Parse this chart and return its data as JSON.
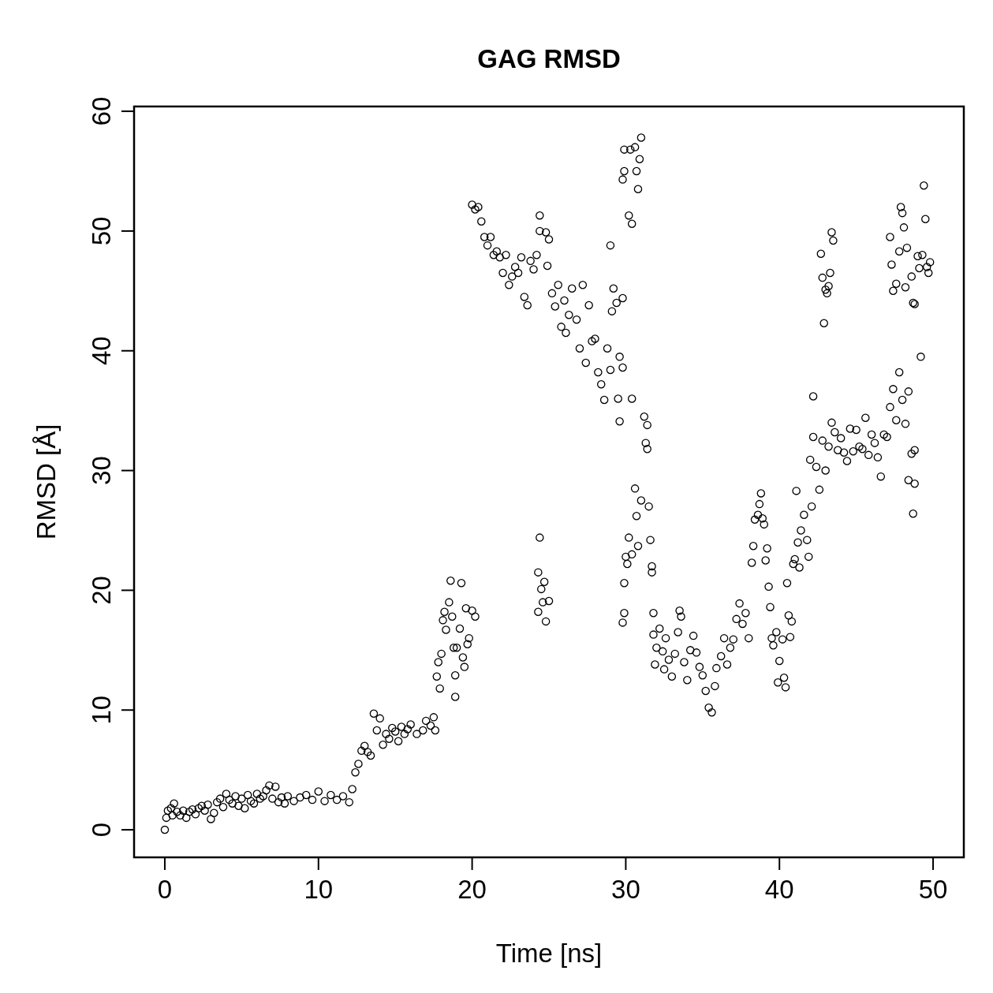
{
  "chart_data": {
    "type": "scatter",
    "title": "GAG RMSD",
    "xlabel": "Time [ns]",
    "ylabel": "RMSD [Å]",
    "xlim": [
      -2,
      52
    ],
    "ylim": [
      -2.3,
      60.4
    ],
    "xticks": [
      0,
      10,
      20,
      30,
      40,
      50
    ],
    "yticks": [
      0,
      10,
      20,
      30,
      40,
      50,
      60
    ],
    "grid": false,
    "marker": "circle",
    "series": [
      {
        "color": "#000000",
        "x": [
          0,
          0.1,
          0.2,
          0.4,
          0.5,
          0.6,
          0.8,
          1,
          1.2,
          1.4,
          1.6,
          1.8,
          2,
          2.2,
          2.4,
          2.6,
          2.8,
          3,
          3.2,
          3.4,
          3.6,
          3.8,
          4,
          4.2,
          4.4,
          4.6,
          4.8,
          5,
          5.2,
          5.4,
          5.6,
          5.8,
          6,
          6.2,
          6.4,
          6.6,
          6.8,
          7,
          7.2,
          7.4,
          7.6,
          7.8,
          8,
          8.4,
          8.8,
          9.2,
          9.6,
          10,
          10.4,
          10.8,
          11.2,
          11.6,
          12,
          12.2,
          12.4,
          12.6,
          12.8,
          13,
          13.2,
          13.4,
          13.6,
          13.8,
          14,
          14.2,
          14.4,
          14.6,
          14.8,
          15,
          15.2,
          15.4,
          15.6,
          15.8,
          16,
          16.4,
          16.8,
          17,
          17.3,
          17.5,
          17.6,
          17.7,
          17.8,
          17.9,
          18,
          18.1,
          18.2,
          18.3,
          18.5,
          18.6,
          18.7,
          18.8,
          18.9,
          18.9,
          19,
          19.2,
          19.3,
          19.4,
          19.5,
          19.6,
          19.7,
          19.8,
          20,
          20.2,
          20,
          20.2,
          20.4,
          20.6,
          20.8,
          21,
          21.2,
          21.4,
          21.6,
          21.8,
          22,
          22.2,
          22.4,
          22.6,
          22.8,
          23,
          23.2,
          23.4,
          23.6,
          23.8,
          24,
          24.2,
          24.4,
          24.4,
          24.8,
          25,
          24.9,
          25.2,
          25.4,
          25.6,
          25.8,
          26,
          26.1,
          26.3,
          26.5,
          26.8,
          27,
          27.2,
          27.4,
          27.6,
          27.8,
          28,
          28.2,
          28.4,
          28.6,
          28.8,
          29,
          29.1,
          29.2,
          29,
          29.4,
          29.5,
          29.6,
          29.8,
          29.6,
          29.8,
          30.4,
          29.8,
          29.9,
          29.9,
          30.3,
          30.2,
          30.4,
          30.6,
          30.7,
          30.8,
          30.9,
          31,
          31.2,
          31.4,
          31.3,
          31.4,
          30.6,
          30.7,
          31,
          30.8,
          30,
          30.2,
          30.1,
          30.4,
          29.9,
          29.8,
          29.9,
          31.5,
          31.6,
          31.7,
          31.7,
          31.8,
          24.3,
          24.4,
          24.5,
          24.6,
          24.7,
          24.8,
          24.3,
          25,
          31.8,
          31.9,
          32,
          32.2,
          32.4,
          32.5,
          32.6,
          32.8,
          33,
          33.2,
          33.4,
          33.5,
          33.6,
          33.8,
          34,
          34.2,
          34.4,
          34.6,
          34.8,
          35,
          35.2,
          35.4,
          35.6,
          35.8,
          35.9,
          36.2,
          36.4,
          36.6,
          36.8,
          37,
          37.2,
          37.4,
          37.6,
          37.8,
          38,
          38.2,
          38.3,
          38.4,
          38.6,
          38.7,
          38.8,
          38.9,
          39,
          39.1,
          39.2,
          39.3,
          39.4,
          39.5,
          39.6,
          39.8,
          39.9,
          40,
          40.2,
          40.3,
          40.4,
          40.5,
          40.6,
          40.7,
          40.8,
          40.9,
          41,
          41.1,
          41.2,
          41.3,
          41.4,
          41.6,
          41.8,
          41.9,
          42.1,
          42,
          42.2,
          42.4,
          42.6,
          42.2,
          42.8,
          43,
          43.2,
          43.4,
          43.6,
          43.8,
          44,
          44.2,
          44.4,
          44.6,
          44.8,
          45,
          45.2,
          45.4,
          45.6,
          45.8,
          46,
          46.2,
          46.4,
          46.6,
          46.8,
          47,
          47.2,
          47.4,
          47.6,
          47.8,
          48,
          48.2,
          48.4,
          48.6,
          48.4,
          48.8,
          48.7,
          48.8,
          42.7,
          42.8,
          42.9,
          43,
          43.1,
          43.3,
          43.4,
          43.5,
          43.2,
          47.2,
          47.3,
          47.4,
          47.6,
          47.8,
          47.9,
          48,
          48.1,
          48.2,
          48.3,
          48.6,
          48.7,
          48.8,
          49,
          49.2,
          49.3,
          49.4,
          49.5,
          49.6,
          49.7,
          49.8,
          49.1
        ],
        "values": [
          0,
          1,
          1.6,
          1.8,
          1.2,
          2.2,
          1.5,
          1.2,
          1.6,
          1,
          1.5,
          1.7,
          1.3,
          1.8,
          2,
          1.6,
          2.1,
          0.9,
          1.4,
          2.3,
          2.6,
          1.9,
          3,
          2.5,
          2.2,
          2.8,
          2,
          2.6,
          1.8,
          2.9,
          2.4,
          2.2,
          3,
          2.6,
          2.8,
          3.3,
          3.7,
          2.6,
          3.6,
          2.3,
          2.7,
          2.2,
          2.8,
          2.4,
          2.7,
          2.9,
          2.5,
          3.2,
          2.4,
          2.9,
          2.5,
          2.8,
          2.3,
          3.4,
          4.8,
          5.5,
          6.6,
          7,
          6.5,
          6.2,
          9.7,
          8.3,
          9.3,
          7.1,
          8,
          7.6,
          8.5,
          8.2,
          7.4,
          8.6,
          8,
          8.4,
          8.8,
          8,
          8.3,
          9.1,
          8.7,
          9.4,
          8.3,
          12.8,
          14,
          11.8,
          14.7,
          17.5,
          18.2,
          16.7,
          19,
          20.8,
          17.8,
          15.2,
          11.1,
          12.9,
          15.2,
          16.8,
          20.6,
          14.4,
          13.6,
          18.5,
          15.5,
          16,
          18.3,
          17.8,
          52.2,
          51.8,
          52,
          50.8,
          49.5,
          48.8,
          49.5,
          48,
          48.3,
          47.8,
          46.5,
          48,
          45.5,
          46.2,
          47,
          46.5,
          47.8,
          44.5,
          43.8,
          47.5,
          46.8,
          48,
          51.3,
          50,
          49.9,
          49.3,
          47.1,
          44.8,
          43.7,
          45.5,
          42,
          44.2,
          41.5,
          43,
          45.2,
          42.6,
          40.2,
          45.5,
          39,
          43.8,
          40.8,
          41,
          38.2,
          37.2,
          35.9,
          40.2,
          38.4,
          43.3,
          45.2,
          48.8,
          44,
          36,
          39.5,
          38.6,
          34.1,
          44.4,
          36,
          54.3,
          55,
          56.8,
          56.8,
          51.3,
          50.6,
          57,
          55,
          53.5,
          56,
          57.8,
          34.5,
          33.8,
          32.3,
          31.8,
          28.5,
          26.2,
          27.5,
          23.7,
          22.8,
          24.4,
          22.2,
          23,
          20.6,
          17.3,
          18.1,
          27,
          24.2,
          22,
          21.5,
          18.1,
          21.5,
          24.4,
          20.1,
          19,
          20.7,
          17.4,
          18.2,
          19.1,
          16.3,
          13.8,
          15.2,
          16.8,
          14.9,
          13.4,
          16,
          14.2,
          12.8,
          14.7,
          16.5,
          18.3,
          17.8,
          14,
          12.5,
          15,
          16.2,
          14.8,
          13.6,
          12.9,
          11.6,
          10.2,
          9.8,
          12,
          13.5,
          14.5,
          16,
          13.8,
          15.2,
          15.9,
          17.6,
          18.9,
          17.2,
          18.1,
          16,
          22.3,
          23.7,
          25.9,
          26.3,
          27.2,
          28.1,
          26,
          25.5,
          22.5,
          23.5,
          20.3,
          18.6,
          16,
          15.4,
          16.5,
          12.3,
          14.1,
          15.9,
          12.7,
          11.9,
          20.6,
          17.9,
          16.1,
          17.4,
          22.2,
          22.6,
          28.3,
          24,
          21.9,
          25,
          26.3,
          24.2,
          22.8,
          27,
          30.9,
          32.8,
          30.3,
          28.4,
          36.2,
          32.5,
          30,
          32,
          34,
          33.2,
          31.7,
          32.7,
          31.5,
          30.8,
          33.5,
          31.6,
          33.4,
          32,
          31.8,
          34.4,
          31.3,
          33,
          32.3,
          31.1,
          29.5,
          33,
          32.8,
          35.3,
          36.8,
          34.2,
          38.2,
          35.9,
          33.9,
          36.6,
          31.4,
          29.2,
          28.9,
          26.4,
          31.7,
          48.1,
          46.1,
          42.3,
          45.1,
          44.8,
          46.5,
          49.9,
          49.2,
          45.4,
          49.5,
          47.2,
          45,
          45.6,
          48.3,
          52,
          51.5,
          50.3,
          45.3,
          48.6,
          46.2,
          44,
          43.9,
          47.9,
          39.5,
          48,
          53.8,
          51,
          47,
          46.5,
          47.4,
          46.9
        ]
      }
    ]
  }
}
